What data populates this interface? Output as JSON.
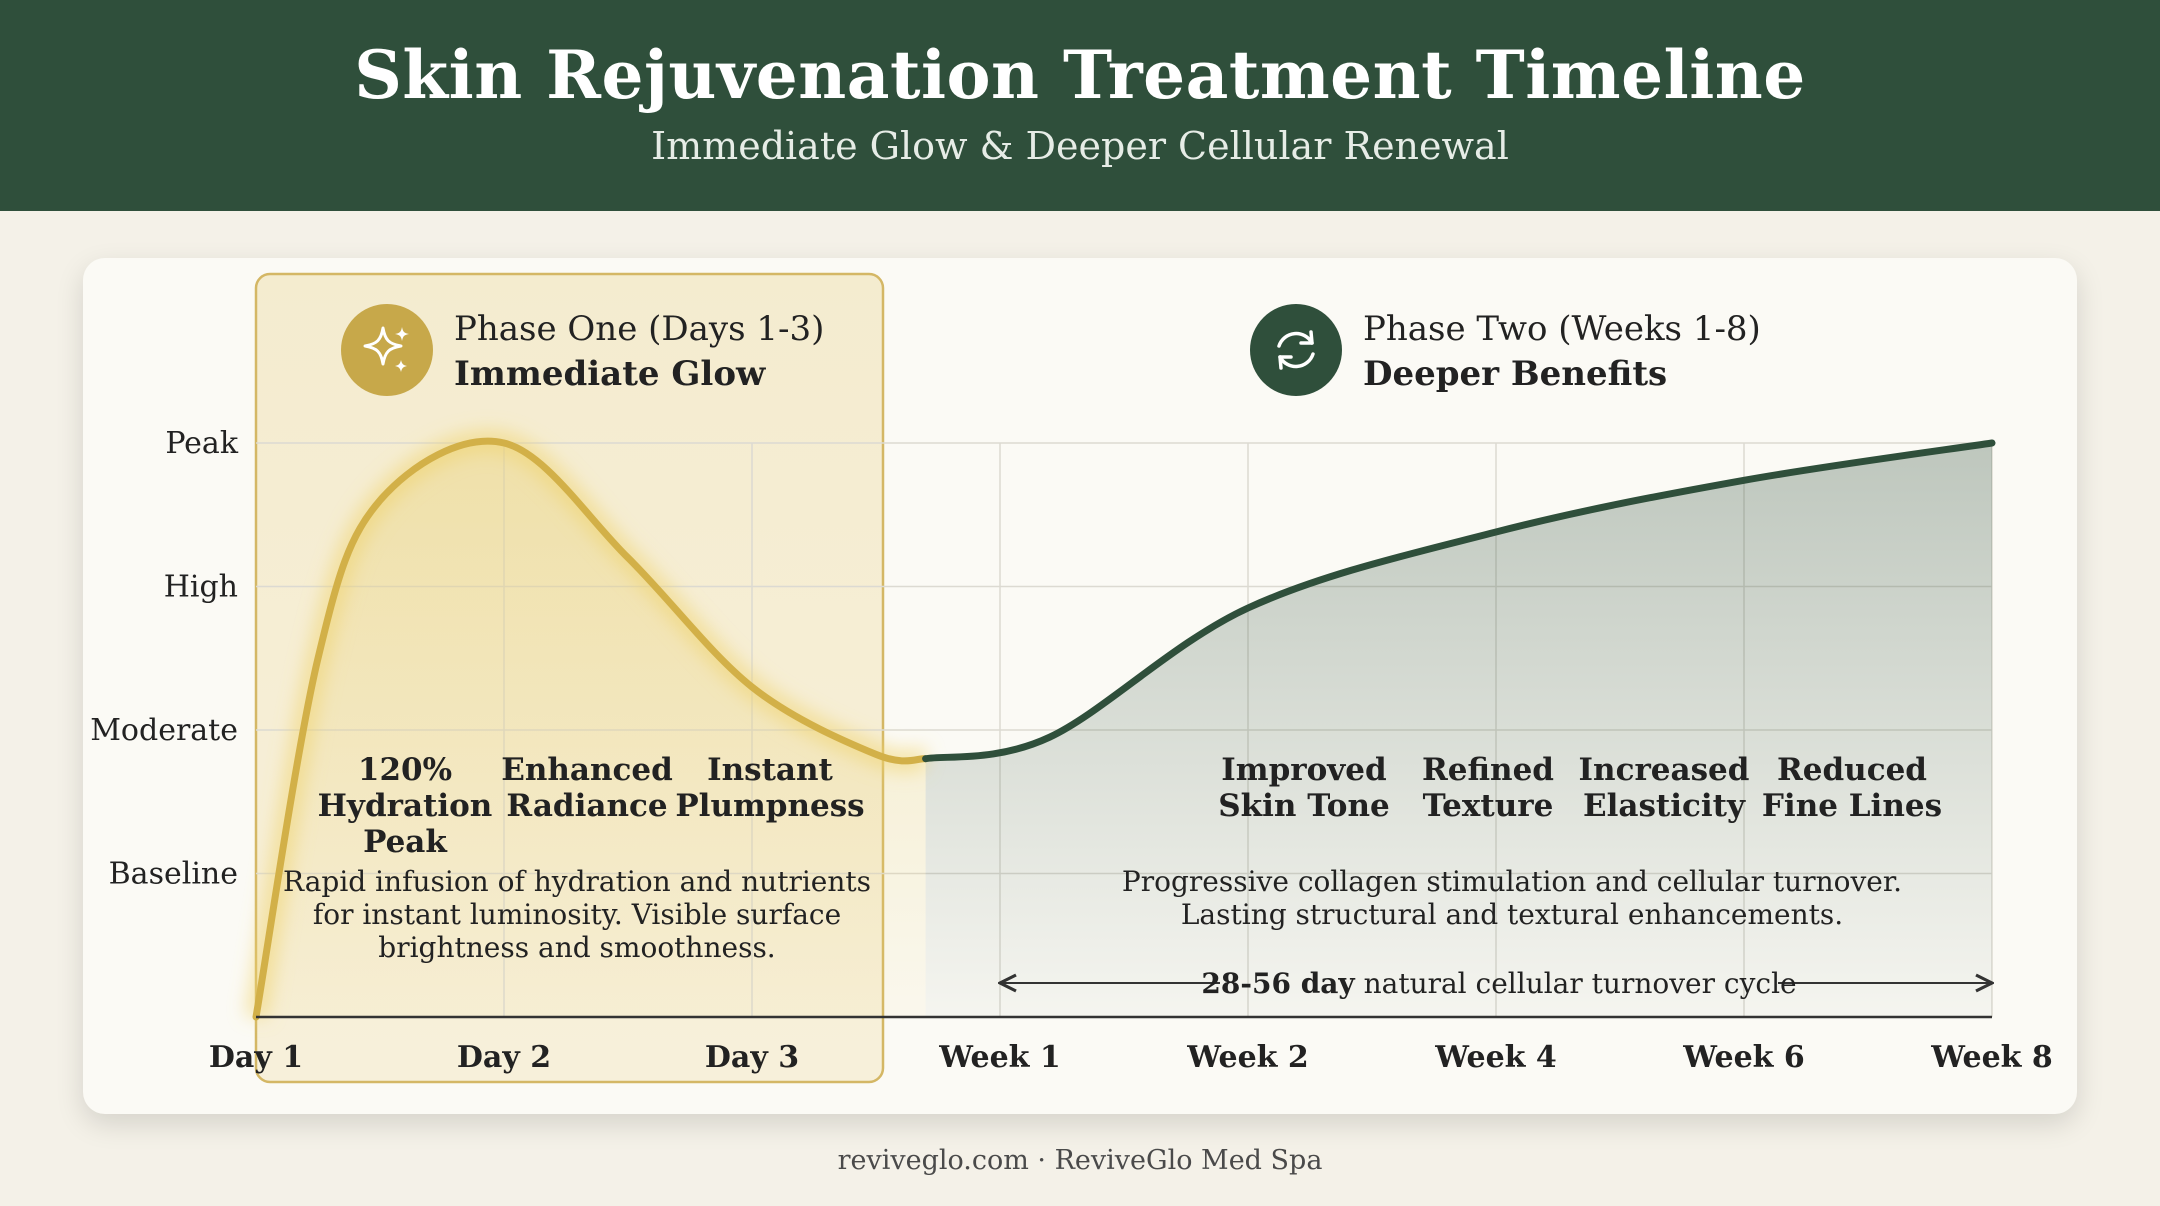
{
  "title": "Skin Rejuvenation Treatment Timeline",
  "subtitle": "Immediate Glow & Deeper Cellular Renewal",
  "phase_one": {
    "label": "Phase One (Days 1-3)",
    "name": "Immediate Glow",
    "icon": "sparkle-icon",
    "color": "#c7a84a",
    "benefits": [
      "120%\nHydration\nPeak",
      "Enhanced\nRadiance",
      "Instant\nPlumpness"
    ],
    "description": "Rapid infusion of hydration and nutrients\nfor instant luminosity. Visible surface\nbrightness and smoothness."
  },
  "phase_two": {
    "label": "Phase Two (Weeks 1-8)",
    "name": "Deeper Benefits",
    "icon": "refresh-icon",
    "color": "#2f4f3b",
    "benefits": [
      "Improved\nSkin Tone",
      "Refined\nTexture",
      "Increased\nElasticity",
      "Reduced\nFine Lines"
    ],
    "description": "Progressive collagen stimulation and cellular turnover.\nLasting structural and textural enhancements.",
    "cycle_bold": "28-56 day",
    "cycle_text": " natural cellular turnover cycle"
  },
  "chart_data": {
    "type": "line",
    "categories": [
      "Day 1",
      "Day 2",
      "Day 3",
      "Week 1",
      "Week 2",
      "Week 4",
      "Week 6",
      "Week 8"
    ],
    "y_levels": [
      "Baseline",
      "Moderate",
      "High",
      "Peak"
    ],
    "ylim": [
      0,
      4
    ],
    "grid": true,
    "series": [
      {
        "color": "#d2b048",
        "points": [
          [
            0,
            0
          ],
          [
            0.25,
            2.5
          ],
          [
            0.5,
            3.6
          ],
          [
            1,
            4.0
          ],
          [
            1.5,
            3.2
          ],
          [
            2,
            2.3
          ],
          [
            2.5,
            1.83
          ],
          [
            2.7,
            1.8
          ]
        ]
      },
      {
        "color": "#2f4f3b",
        "points": [
          [
            2.7,
            1.8
          ],
          [
            3.2,
            1.95
          ],
          [
            4,
            2.85
          ],
          [
            5,
            3.38
          ],
          [
            6,
            3.74
          ],
          [
            7,
            4.0
          ]
        ]
      }
    ]
  },
  "footer": "reviveglo.com · ReviveGlo Med Spa"
}
